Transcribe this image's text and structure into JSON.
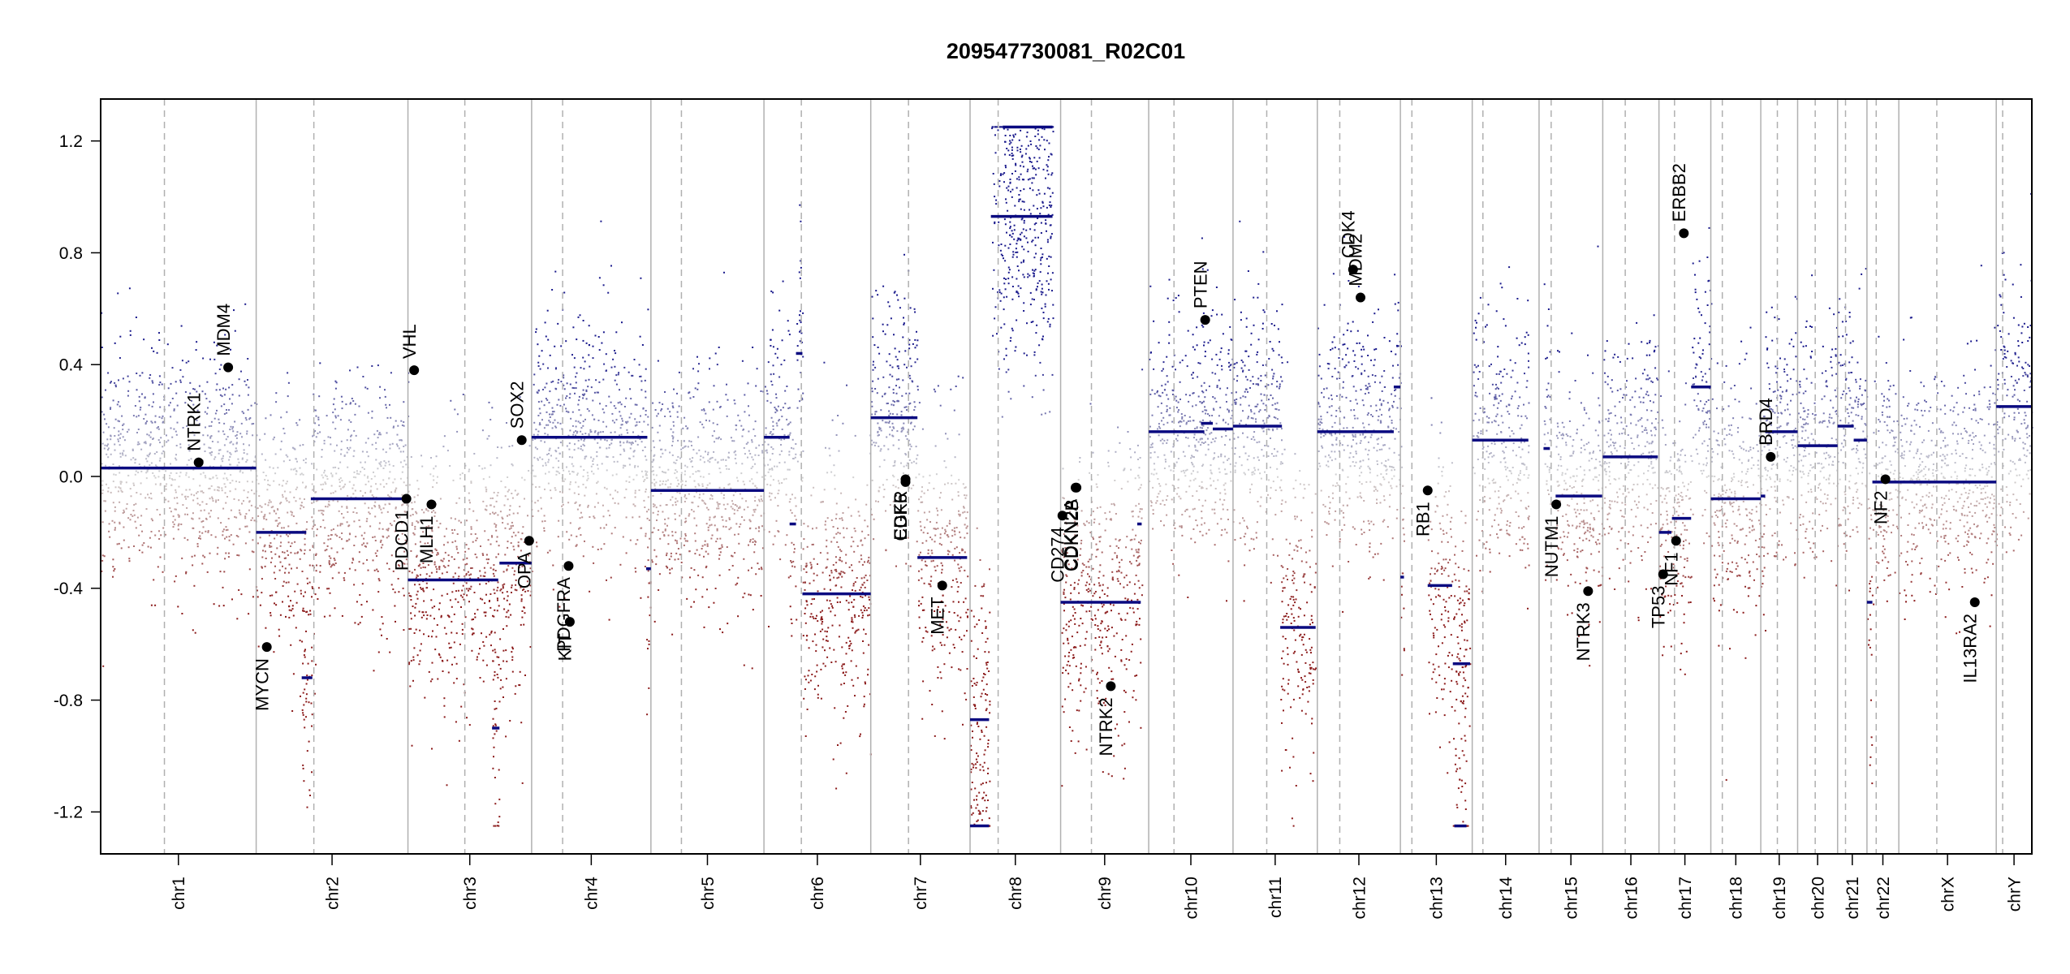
{
  "chart_data": {
    "type": "scatter",
    "title": "209547730081_R02C01",
    "xlabel": "",
    "ylabel": "",
    "ylim": [
      -1.35,
      1.35
    ],
    "yticks": [
      -1.2,
      -0.8,
      -0.4,
      0.0,
      0.4,
      0.8,
      1.2
    ],
    "ytick_labels": [
      "-1.2",
      "-0.8",
      "-0.4",
      "0.0",
      "0.4",
      "0.8",
      "1.2"
    ],
    "grid": false,
    "colors": {
      "gain": "#1a1a8c",
      "loss": "#8b1a1a",
      "neutral": "#bbbbbb",
      "segment": "#0a0a80",
      "gene": "#000000"
    },
    "chromosomes": [
      {
        "name": "chr1",
        "length": 249,
        "centromere": 0.41
      },
      {
        "name": "chr2",
        "length": 243,
        "centromere": 0.38
      },
      {
        "name": "chr3",
        "length": 198,
        "centromere": 0.46
      },
      {
        "name": "chr4",
        "length": 191,
        "centromere": 0.26
      },
      {
        "name": "chr5",
        "length": 181,
        "centromere": 0.27
      },
      {
        "name": "chr6",
        "length": 171,
        "centromere": 0.35
      },
      {
        "name": "chr7",
        "length": 159,
        "centromere": 0.38
      },
      {
        "name": "chr8",
        "length": 145,
        "centromere": 0.31
      },
      {
        "name": "chr9",
        "length": 141,
        "centromere": 0.35
      },
      {
        "name": "chr10",
        "length": 135,
        "centromere": 0.3
      },
      {
        "name": "chr11",
        "length": 135,
        "centromere": 0.4
      },
      {
        "name": "chr12",
        "length": 133,
        "centromere": 0.27
      },
      {
        "name": "chr13",
        "length": 115,
        "centromere": 0.16
      },
      {
        "name": "chr14",
        "length": 107,
        "centromere": 0.16
      },
      {
        "name": "chr15",
        "length": 102,
        "centromere": 0.19
      },
      {
        "name": "chr16",
        "length": 90,
        "centromere": 0.4
      },
      {
        "name": "chr17",
        "length": 83,
        "centromere": 0.3
      },
      {
        "name": "chr18",
        "length": 80,
        "centromere": 0.23
      },
      {
        "name": "chr19",
        "length": 59,
        "centromere": 0.45
      },
      {
        "name": "chr20",
        "length": 64,
        "centromere": 0.44
      },
      {
        "name": "chr21",
        "length": 47,
        "centromere": 0.27
      },
      {
        "name": "chr22",
        "length": 51,
        "centromere": 0.29
      },
      {
        "name": "chrX",
        "length": 156,
        "centromere": 0.39
      },
      {
        "name": "chrY",
        "length": 57,
        "centromere": 0.18
      }
    ],
    "segments": [
      {
        "chr": "chr1",
        "start": 0.0,
        "end": 1.0,
        "value": 0.03
      },
      {
        "chr": "chr2",
        "start": 0.0,
        "end": 0.33,
        "value": -0.2
      },
      {
        "chr": "chr2",
        "start": 0.3,
        "end": 0.37,
        "value": -0.72
      },
      {
        "chr": "chr2",
        "start": 0.36,
        "end": 1.0,
        "value": -0.08
      },
      {
        "chr": "chr3",
        "start": 0.0,
        "end": 0.73,
        "value": -0.37
      },
      {
        "chr": "chr3",
        "start": 0.68,
        "end": 0.74,
        "value": -0.9
      },
      {
        "chr": "chr3",
        "start": 0.74,
        "end": 1.0,
        "value": -0.31
      },
      {
        "chr": "chr4",
        "start": 0.0,
        "end": 0.97,
        "value": 0.14
      },
      {
        "chr": "chr4",
        "start": 0.96,
        "end": 1.0,
        "value": -0.33
      },
      {
        "chr": "chr5",
        "start": 0.0,
        "end": 1.0,
        "value": -0.05
      },
      {
        "chr": "chr6",
        "start": 0.0,
        "end": 0.24,
        "value": 0.14
      },
      {
        "chr": "chr6",
        "start": 0.24,
        "end": 0.3,
        "value": -0.17
      },
      {
        "chr": "chr6",
        "start": 0.3,
        "end": 0.36,
        "value": 0.44
      },
      {
        "chr": "chr6",
        "start": 0.36,
        "end": 1.0,
        "value": -0.42
      },
      {
        "chr": "chr7",
        "start": 0.0,
        "end": 0.47,
        "value": 0.21
      },
      {
        "chr": "chr7",
        "start": 0.47,
        "end": 0.97,
        "value": -0.29
      },
      {
        "chr": "chr8",
        "start": 0.0,
        "end": 0.21,
        "value": -0.87
      },
      {
        "chr": "chr8",
        "start": 0.0,
        "end": 0.21,
        "value": -1.25
      },
      {
        "chr": "chr8",
        "start": 0.23,
        "end": 0.91,
        "value": 0.93
      },
      {
        "chr": "chr8",
        "start": 0.36,
        "end": 0.91,
        "value": 1.25
      },
      {
        "chr": "chr9",
        "start": 0.0,
        "end": 0.91,
        "value": -0.45
      },
      {
        "chr": "chr9",
        "start": 0.87,
        "end": 0.92,
        "value": -0.17
      },
      {
        "chr": "chr10",
        "start": 0.0,
        "end": 0.66,
        "value": 0.16
      },
      {
        "chr": "chr10",
        "start": 0.62,
        "end": 0.76,
        "value": 0.19
      },
      {
        "chr": "chr10",
        "start": 0.76,
        "end": 1.0,
        "value": 0.17
      },
      {
        "chr": "chr11",
        "start": 0.0,
        "end": 0.58,
        "value": 0.18
      },
      {
        "chr": "chr11",
        "start": 0.56,
        "end": 0.98,
        "value": -0.54
      },
      {
        "chr": "chr12",
        "start": 0.0,
        "end": 0.92,
        "value": 0.16
      },
      {
        "chr": "chr12",
        "start": 0.92,
        "end": 1.0,
        "value": 0.32
      },
      {
        "chr": "chr13",
        "start": 0.0,
        "end": 0.05,
        "value": -0.36
      },
      {
        "chr": "chr13",
        "start": 0.38,
        "end": 0.72,
        "value": -0.39
      },
      {
        "chr": "chr13",
        "start": 0.75,
        "end": 0.92,
        "value": -1.25
      },
      {
        "chr": "chr13",
        "start": 0.73,
        "end": 0.97,
        "value": -0.67
      },
      {
        "chr": "chr14",
        "start": 0.0,
        "end": 0.84,
        "value": 0.13
      },
      {
        "chr": "chr15",
        "start": 0.07,
        "end": 0.17,
        "value": 0.1
      },
      {
        "chr": "chr15",
        "start": 0.26,
        "end": 0.99,
        "value": -0.07
      },
      {
        "chr": "chr16",
        "start": 0.0,
        "end": 0.98,
        "value": 0.07
      },
      {
        "chr": "chr17",
        "start": 0.0,
        "end": 0.24,
        "value": -0.2
      },
      {
        "chr": "chr17",
        "start": 0.25,
        "end": 0.62,
        "value": -0.15
      },
      {
        "chr": "chr17",
        "start": 0.62,
        "end": 1.0,
        "value": 0.32
      },
      {
        "chr": "chr18",
        "start": 0.0,
        "end": 1.0,
        "value": -0.08
      },
      {
        "chr": "chr19",
        "start": 0.0,
        "end": 0.12,
        "value": -0.07
      },
      {
        "chr": "chr19",
        "start": 0.12,
        "end": 1.0,
        "value": 0.16
      },
      {
        "chr": "chr20",
        "start": 0.0,
        "end": 1.0,
        "value": 0.11
      },
      {
        "chr": "chr21",
        "start": 0.0,
        "end": 0.55,
        "value": 0.18
      },
      {
        "chr": "chr21",
        "start": 0.55,
        "end": 1.0,
        "value": 0.13
      },
      {
        "chr": "chr22",
        "start": 0.0,
        "end": 0.17,
        "value": -0.45
      },
      {
        "chr": "chr22",
        "start": 0.17,
        "end": 1.0,
        "value": -0.02
      },
      {
        "chrX": true,
        "chr": "chrX",
        "start": 0.0,
        "end": 1.0,
        "value": -0.02
      },
      {
        "chr": "chrY",
        "start": 0.0,
        "end": 1.0,
        "value": 0.25
      }
    ],
    "genes": [
      {
        "name": "NTRK1",
        "chr": "chr1",
        "pos": 0.63,
        "value": 0.05
      },
      {
        "name": "MDM4",
        "chr": "chr1",
        "pos": 0.82,
        "value": 0.39
      },
      {
        "name": "MYCN",
        "chr": "chr2",
        "pos": 0.07,
        "value": -0.61
      },
      {
        "name": "VHL",
        "chr": "chr3",
        "pos": 0.05,
        "value": 0.38
      },
      {
        "name": "PDCD1",
        "chr": "chr2",
        "pos": 0.99,
        "value": -0.08
      },
      {
        "name": "MLH1",
        "chr": "chr3",
        "pos": 0.19,
        "value": -0.1
      },
      {
        "name": "SOX2",
        "chr": "chr3",
        "pos": 0.92,
        "value": 0.13
      },
      {
        "name": "OPA",
        "chr": "chr3",
        "pos": 0.98,
        "value": -0.23
      },
      {
        "name": "KIT",
        "chr": "chr4",
        "pos": 0.32,
        "value": -0.52
      },
      {
        "name": "PDGFRA",
        "chr": "chr4",
        "pos": 0.31,
        "value": -0.32
      },
      {
        "name": "EGFR",
        "chr": "chr7",
        "pos": 0.35,
        "value": -0.01
      },
      {
        "name": "CDK6",
        "chr": "chr7",
        "pos": 0.35,
        "value": -0.02
      },
      {
        "name": "MET",
        "chr": "chr7",
        "pos": 0.72,
        "value": -0.39
      },
      {
        "name": "CD274",
        "chr": "chr9",
        "pos": 0.02,
        "value": -0.14
      },
      {
        "name": "CDKN2A",
        "chr": "chr9",
        "pos": 0.17,
        "value": -0.04
      },
      {
        "name": "CDKN2B",
        "chr": "chr9",
        "pos": 0.18,
        "value": -0.04
      },
      {
        "name": "NTRK2",
        "chr": "chr9",
        "pos": 0.57,
        "value": -0.75
      },
      {
        "name": "PTEN",
        "chr": "chr10",
        "pos": 0.67,
        "value": 0.56
      },
      {
        "name": "CDK4",
        "chr": "chr12",
        "pos": 0.43,
        "value": 0.74
      },
      {
        "name": "MDM2",
        "chr": "chr12",
        "pos": 0.52,
        "value": 0.64
      },
      {
        "name": "RB1",
        "chr": "chr13",
        "pos": 0.38,
        "value": -0.05
      },
      {
        "name": "NUTM1",
        "chr": "chr15",
        "pos": 0.27,
        "value": -0.1
      },
      {
        "name": "NTRK3",
        "chr": "chr15",
        "pos": 0.77,
        "value": -0.41
      },
      {
        "name": "TP53",
        "chr": "chr17",
        "pos": 0.08,
        "value": -0.35
      },
      {
        "name": "NF1",
        "chr": "chr17",
        "pos": 0.33,
        "value": -0.23
      },
      {
        "name": "ERBB2",
        "chr": "chr17",
        "pos": 0.48,
        "value": 0.87
      },
      {
        "name": "BRD4",
        "chr": "chr19",
        "pos": 0.27,
        "value": 0.07
      },
      {
        "name": "NF2",
        "chr": "chr22",
        "pos": 0.58,
        "value": -0.01
      },
      {
        "name": "IL13RA2",
        "chr": "chrX",
        "pos": 0.78,
        "value": -0.45
      }
    ]
  }
}
